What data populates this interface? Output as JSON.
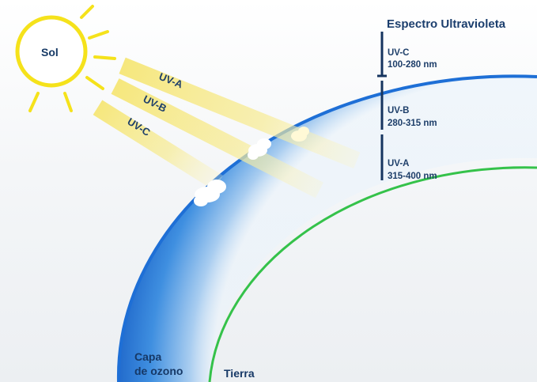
{
  "sun": {
    "label": "Sol",
    "color": "#f5e21b"
  },
  "rays": [
    {
      "label": "UV-A"
    },
    {
      "label": "UV-B"
    },
    {
      "label": "UV-C"
    }
  ],
  "spectrum": {
    "title": "Espectro Ultravioleta",
    "bands": [
      {
        "name": "UV-C",
        "range": "100-280 nm"
      },
      {
        "name": "UV-B",
        "range": "280-315 nm"
      },
      {
        "name": "UV-A",
        "range": "315-400 nm"
      }
    ]
  },
  "labels": {
    "ozone_line1": "Capa",
    "ozone_line2": "de ozono",
    "earth": "Tierra"
  },
  "colors": {
    "ozone_layer": "#1f73d8",
    "earth_line": "#3cc64a",
    "ray": "#f7ec8a",
    "text": "#173a66"
  }
}
